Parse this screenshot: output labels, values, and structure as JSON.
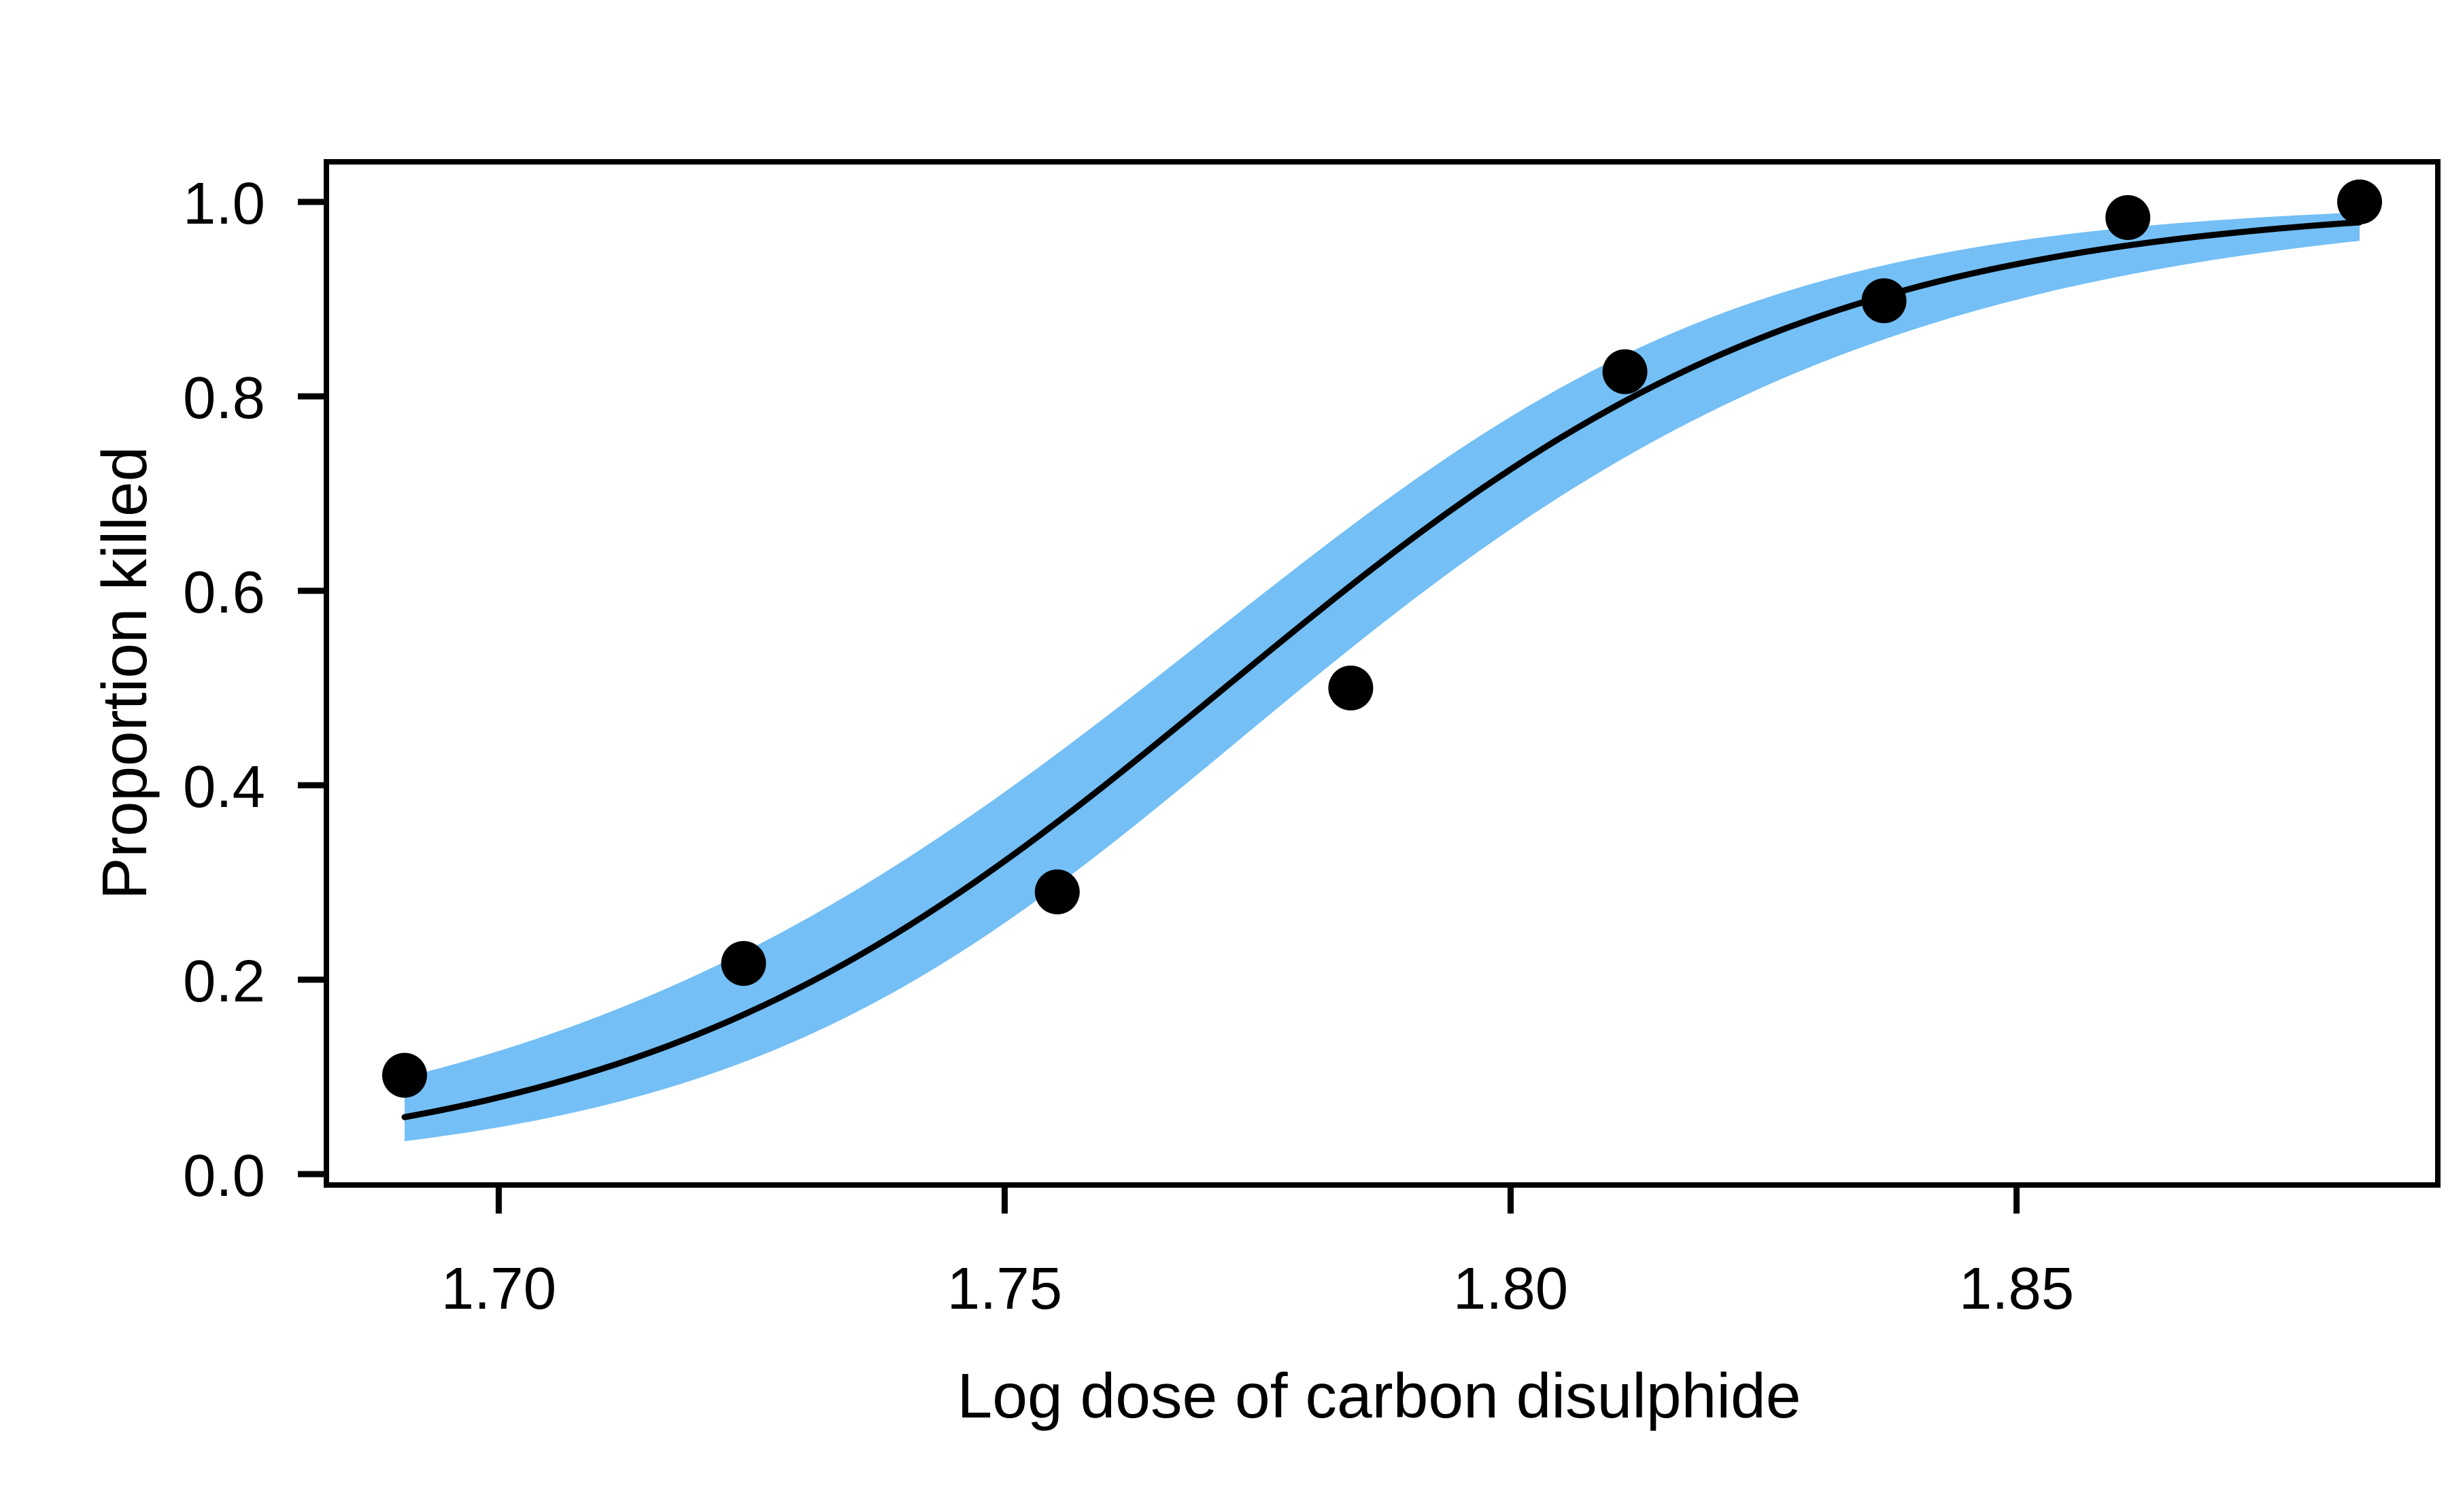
{
  "chart_data": {
    "type": "scatter",
    "title": "",
    "xlabel": "Log dose of carbon disulphide",
    "ylabel": "Proportion killed",
    "grid": false,
    "legend": null,
    "x_axis": {
      "limits": [
        1.68297,
        1.89163
      ],
      "ticks": [
        {
          "value": 1.7,
          "label": "1.70"
        },
        {
          "value": 1.75,
          "label": "1.75"
        },
        {
          "value": 1.8,
          "label": "1.80"
        },
        {
          "value": 1.85,
          "label": "1.85"
        }
      ]
    },
    "y_axis": {
      "limits": [
        0.0,
        1.0
      ],
      "ticks": [
        {
          "value": 0.0,
          "label": "0.0"
        },
        {
          "value": 0.2,
          "label": "0.2"
        },
        {
          "value": 0.4,
          "label": "0.4"
        },
        {
          "value": 0.6,
          "label": "0.6"
        },
        {
          "value": 0.8,
          "label": "0.8"
        },
        {
          "value": 1.0,
          "label": "1.0"
        }
      ]
    },
    "points": [
      {
        "x": 1.6907,
        "y": 0.1017
      },
      {
        "x": 1.7242,
        "y": 0.2167
      },
      {
        "x": 1.7552,
        "y": 0.2903
      },
      {
        "x": 1.7842,
        "y": 0.5
      },
      {
        "x": 1.8113,
        "y": 0.8254
      },
      {
        "x": 1.8369,
        "y": 0.8983
      },
      {
        "x": 1.861,
        "y": 0.9839
      },
      {
        "x": 1.8839,
        "y": 1.0
      }
    ],
    "fit_curve": {
      "model": "logistic",
      "intercept": -60.7175,
      "slope": 34.2703,
      "x_start": 1.6907,
      "x_end": 1.8839
    },
    "confidence_band": {
      "level": 0.95,
      "z": 2.0,
      "variance_poly": [
        26.8399,
        -30.1644,
        8.4806
      ]
    },
    "colors": {
      "band": "#74BFF5",
      "curve": "#000000",
      "points": "#000000",
      "axis": "#000000",
      "background": "#FFFFFF"
    }
  }
}
